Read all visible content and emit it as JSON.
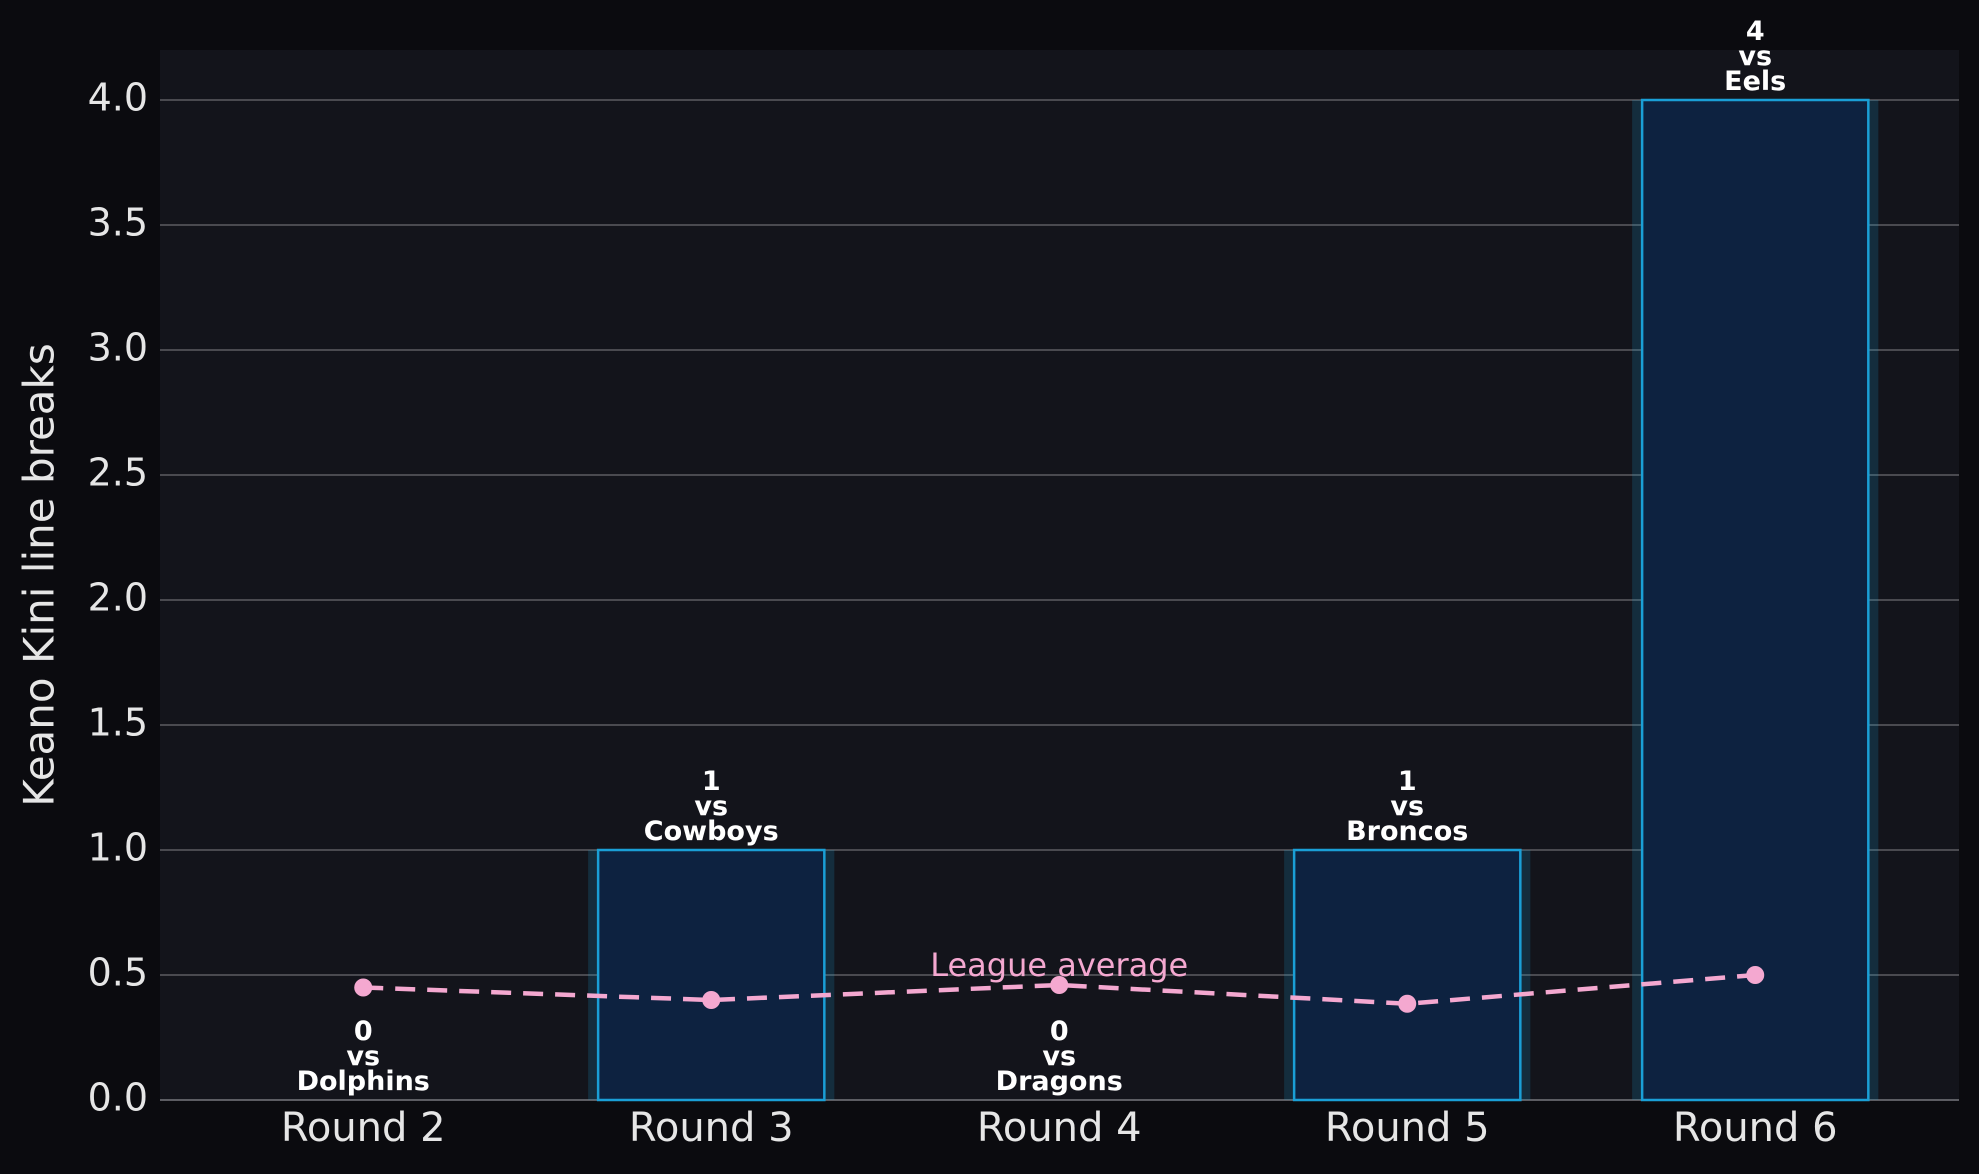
{
  "chart_data": {
    "type": "bar",
    "y_label": "Keano Kini line breaks",
    "categories": [
      "Round 2",
      "Round 3",
      "Round 4",
      "Round 5",
      "Round 6"
    ],
    "data_label_separator": "vs",
    "opponents": [
      "Dolphins",
      "Cowboys",
      "Dragons",
      "Broncos",
      "Eels"
    ],
    "series": [
      {
        "type": "bar",
        "color": "#1a9fd6",
        "fill": "#0d2240",
        "values": [
          0,
          1,
          0,
          1,
          4
        ]
      },
      {
        "type": "line",
        "name": "League average",
        "color": "#f4a8d0",
        "values": [
          0.45,
          0.4,
          0.46,
          0.385,
          0.5
        ]
      }
    ],
    "ylim": [
      0,
      4.2
    ],
    "yticks": [
      {
        "value": 0,
        "label": "0.0"
      },
      {
        "value": 0.5,
        "label": "0.5"
      },
      {
        "value": 1,
        "label": "1.0"
      },
      {
        "value": 1.5,
        "label": "1.5"
      },
      {
        "value": 2,
        "label": "2.0"
      },
      {
        "value": 2.5,
        "label": "2.5"
      },
      {
        "value": 3,
        "label": "3.0"
      },
      {
        "value": 3.5,
        "label": "3.5"
      },
      {
        "value": 4,
        "label": "4.0"
      }
    ],
    "grid": true
  }
}
